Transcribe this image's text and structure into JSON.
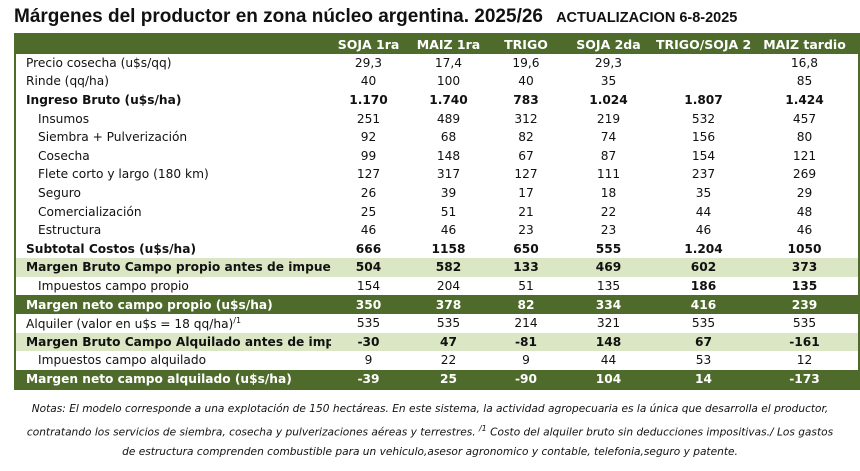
{
  "header": {
    "title": "Márgenes  del productor en zona núcleo argentina. 2025/26",
    "update": "ACTUALIZACION 6-8-2025"
  },
  "table": {
    "columns": [
      "SOJA 1ra",
      "MAIZ 1ra",
      "TRIGO",
      "SOJA 2da",
      "TRIGO/SOJA 2",
      "MAIZ tardio"
    ],
    "rows": [
      {
        "label": "Precio cosecha (u$s/qq)",
        "cells": [
          "29,3",
          "17,4",
          "19,6",
          "29,3",
          null,
          "16,8"
        ]
      },
      {
        "label": "Rinde (qq/ha)",
        "cells": [
          "40",
          "100",
          "40",
          "35",
          null,
          "85"
        ]
      },
      {
        "label": "Ingreso Bruto (u$s/ha)",
        "cells": [
          "1.170",
          "1.740",
          "783",
          "1.024",
          "1.807",
          "1.424"
        ]
      },
      {
        "label": "Insumos",
        "cells": [
          "251",
          "489",
          "312",
          "219",
          "532",
          "457"
        ]
      },
      {
        "label": "Siembra + Pulverización",
        "cells": [
          "92",
          "68",
          "82",
          "74",
          "156",
          "80"
        ]
      },
      {
        "label": "Cosecha",
        "cells": [
          "99",
          "148",
          "67",
          "87",
          "154",
          "121"
        ]
      },
      {
        "label": "Flete corto y largo (180 km)",
        "cells": [
          "127",
          "317",
          "127",
          "111",
          "237",
          "269"
        ]
      },
      {
        "label": "Seguro",
        "cells": [
          "26",
          "39",
          "17",
          "18",
          "35",
          "29"
        ]
      },
      {
        "label": "Comercialización",
        "cells": [
          "25",
          "51",
          "21",
          "22",
          "44",
          "48"
        ]
      },
      {
        "label": "Estructura",
        "cells": [
          "46",
          "46",
          "23",
          "23",
          "46",
          "46"
        ]
      },
      {
        "label": "Subtotal Costos (u$s/ha)",
        "cells": [
          "666",
          "1158",
          "650",
          "555",
          "1.204",
          "1050"
        ]
      },
      {
        "label": "Margen Bruto Campo propio antes de impuestos",
        "cells": [
          "504",
          "582",
          "133",
          "469",
          "602",
          "373"
        ]
      },
      {
        "label": "Impuestos  campo propio",
        "cells": [
          "154",
          "204",
          "51",
          "135",
          "186",
          "135"
        ]
      },
      {
        "label": "Margen neto campo propio (u$s/ha)",
        "cells": [
          "350",
          "378",
          "82",
          "334",
          "416",
          "239"
        ]
      },
      {
        "label": "Alquiler (valor en u$s = 18 qq/ha)",
        "sup": "/1",
        "cells": [
          "535",
          "535",
          "214",
          "321",
          "535",
          "535"
        ]
      },
      {
        "label": "Margen Bruto Campo Alquilado antes de impuest",
        "cells": [
          "-30",
          "47",
          "-81",
          "148",
          "67",
          "-161"
        ]
      },
      {
        "label": "Impuestos campo alquilado",
        "cells": [
          "9",
          "22",
          "9",
          "44",
          "53",
          "12"
        ]
      },
      {
        "label": "Margen neto campo alquilado (u$s/ha)",
        "cells": [
          "-39",
          "25",
          "-90",
          "104",
          "14",
          "-173"
        ]
      }
    ]
  },
  "notes": [
    "Notas: El modelo corresponde a una explotación de 150 hectáreas. En este sistema, la actividad agropecuaria es la única que desarrolla el productor, contratando los servicios de siembra, cosecha y pulverizaciones aéreas y terrestres.",
    "/1",
    "Costo del alquiler bruto sin deducciones impositivas./ Los gastos de estructura comprenden combustible para un vehiculo,asesor agronomico y contable, telefonia,seguro y patente."
  ]
}
